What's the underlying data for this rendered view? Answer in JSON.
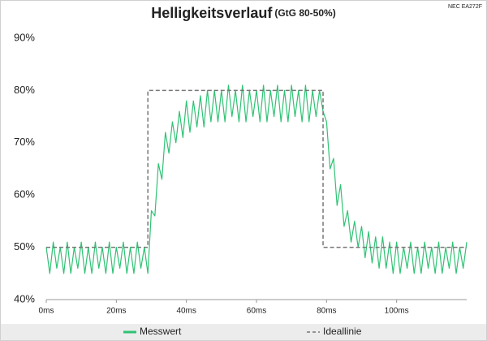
{
  "chart_data": {
    "type": "line",
    "title": "Helligkeitsverlauf",
    "subtitle": "(GtG 80-50%)",
    "annotation": "NEC EA272F",
    "x": [
      0,
      1,
      2,
      3,
      4,
      5,
      6,
      7,
      8,
      9,
      10,
      11,
      12,
      13,
      14,
      15,
      16,
      17,
      18,
      19,
      20,
      21,
      22,
      23,
      24,
      25,
      26,
      27,
      28,
      29,
      30,
      31,
      32,
      33,
      34,
      35,
      36,
      37,
      38,
      39,
      40,
      41,
      42,
      43,
      44,
      45,
      46,
      47,
      48,
      49,
      50,
      51,
      52,
      53,
      54,
      55,
      56,
      57,
      58,
      59,
      60,
      61,
      62,
      63,
      64,
      65,
      66,
      67,
      68,
      69,
      70,
      71,
      72,
      73,
      74,
      75,
      76,
      77,
      78,
      79,
      80,
      81,
      82,
      83,
      84,
      85,
      86,
      87,
      88,
      89,
      90,
      91,
      92,
      93,
      94,
      95,
      96,
      97,
      98,
      99,
      100,
      101,
      102,
      103,
      104,
      105,
      106,
      107,
      108,
      109,
      110,
      111,
      112,
      113,
      114,
      115,
      116,
      117,
      118,
      119,
      120
    ],
    "series": [
      {
        "name": "Messwert",
        "color": "#2fc274",
        "dash": false,
        "values": [
          50,
          45,
          51,
          46,
          50,
          45,
          51,
          45,
          50,
          46,
          51,
          45,
          50,
          45,
          51,
          46,
          50,
          45,
          51,
          45,
          50,
          46,
          51,
          45,
          50,
          45,
          51,
          46,
          50,
          45,
          57,
          56,
          66,
          63,
          72,
          68,
          74,
          70,
          76,
          71,
          78,
          72,
          78,
          73,
          79,
          73,
          80,
          74,
          80,
          74,
          80,
          74,
          81,
          75,
          80,
          74,
          81,
          74,
          80,
          75,
          80,
          74,
          81,
          74,
          80,
          75,
          81,
          74,
          80,
          74,
          81,
          75,
          80,
          74,
          81,
          74,
          80,
          75,
          80,
          76,
          74,
          65,
          67,
          58,
          62,
          54,
          57,
          51,
          55,
          50,
          54,
          48,
          53,
          47,
          52,
          46,
          52,
          46,
          51,
          45,
          51,
          45,
          50,
          46,
          51,
          45,
          50,
          45,
          51,
          46,
          50,
          45,
          51,
          45,
          50,
          46,
          51,
          45,
          50,
          46,
          51
        ]
      },
      {
        "name": "Ideallinie",
        "color": "#777777",
        "dash": true,
        "x": [
          0,
          29,
          29,
          79,
          79,
          120
        ],
        "values": [
          50,
          50,
          80,
          80,
          50,
          50
        ]
      }
    ],
    "xlim": [
      0,
      120
    ],
    "xticks": [
      {
        "value": 0,
        "label": "0ms"
      },
      {
        "value": 20,
        "label": "20ms"
      },
      {
        "value": 40,
        "label": "40ms"
      },
      {
        "value": 60,
        "label": "60ms"
      },
      {
        "value": 80,
        "label": "80ms"
      },
      {
        "value": 100,
        "label": "100ms"
      }
    ],
    "ylim": [
      40,
      90
    ],
    "yticks": [
      {
        "value": 40,
        "label": "40%"
      },
      {
        "value": 50,
        "label": "50%"
      },
      {
        "value": 60,
        "label": "60%"
      },
      {
        "value": 70,
        "label": "70%"
      },
      {
        "value": 80,
        "label": "80%"
      },
      {
        "value": 90,
        "label": "90%"
      }
    ],
    "grid": false,
    "legend": "bottom"
  }
}
